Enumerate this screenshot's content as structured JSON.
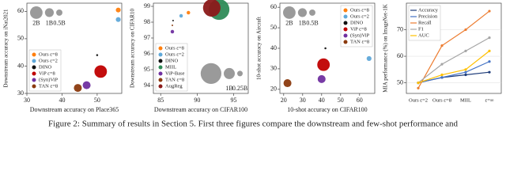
{
  "chart_data": [
    {
      "type": "bubble",
      "xlabel": "Downstream accuracy on Place365",
      "ylabel": "Downstream accuracy on iNat2021",
      "xlim": [
        30,
        57
      ],
      "ylim": [
        30,
        63
      ],
      "xticks": [
        30,
        40,
        50
      ],
      "yticks": [
        30,
        40,
        50,
        60
      ],
      "legend": "lower left",
      "size_legend": {
        "labels": [
          "2B",
          "1B",
          "0.5B"
        ],
        "sizes": [
          2,
          1,
          0.5
        ]
      },
      "size_legend_loc": "upper left",
      "series": [
        {
          "name": "Ours ε=8",
          "color": "#ff7f0e",
          "x": [
            56
          ],
          "values": [
            60.5
          ],
          "sizes": [
            0.3
          ]
        },
        {
          "name": "Ours ε=2",
          "color": "#5fa8d9",
          "x": [
            56
          ],
          "values": [
            57
          ],
          "sizes": [
            0.3
          ]
        },
        {
          "name": "DINO",
          "color": "#111111",
          "x": [
            50
          ],
          "values": [
            44
          ],
          "sizes": [
            0.05
          ]
        },
        {
          "name": "ViP ε=8",
          "color": "#c00000",
          "x": [
            51
          ],
          "values": [
            38
          ],
          "sizes": [
            2
          ]
        },
        {
          "name": "(Syn)ViP",
          "color": "#7030a0",
          "x": [
            47
          ],
          "values": [
            33
          ],
          "sizes": [
            0.8
          ]
        },
        {
          "name": "TAN ε=8",
          "color": "#8b3a0e",
          "x": [
            44.5
          ],
          "values": [
            32
          ],
          "sizes": [
            0.8
          ]
        }
      ]
    },
    {
      "type": "bubble",
      "xlabel": "Downstream accuracy on CIFAR100",
      "ylabel": "Downstream accuracy on CIFAR10",
      "xlim": [
        84,
        97
      ],
      "ylim": [
        93.5,
        99.2
      ],
      "xticks": [
        85,
        90,
        95
      ],
      "yticks": [
        94,
        95,
        96,
        97,
        98,
        99
      ],
      "legend": "lower left",
      "size_legend": {
        "labels": [
          null,
          "1B",
          "0.25B"
        ],
        "sizes": [
          3.5,
          1,
          0.25
        ]
      },
      "size_legend_loc": "lower right",
      "series": [
        {
          "name": "Ours ε=8",
          "color": "#ff7f0e",
          "x": [
            88.8
          ],
          "values": [
            98.6
          ],
          "sizes": [
            0.1
          ]
        },
        {
          "name": "Ours ε=2",
          "color": "#5fa8d9",
          "x": [
            87.8
          ],
          "values": [
            98.4
          ],
          "sizes": [
            0.1
          ]
        },
        {
          "name": "DINO",
          "color": "#111111",
          "x": [
            86.7
          ],
          "values": [
            98.1
          ],
          "sizes": [
            0.02
          ]
        },
        {
          "name": "MIIL",
          "color": "#2e8b57",
          "x": [
            93
          ],
          "values": [
            98.8
          ],
          "sizes": [
            3.5
          ]
        },
        {
          "name": "ViP-Base",
          "color": "#7030a0",
          "x": [
            86.6
          ],
          "values": [
            97.4
          ],
          "sizes": [
            0.1
          ]
        },
        {
          "name": "TAN ε=8",
          "color": "#8b3a0e",
          "x": [
            86.6
          ],
          "values": [
            97.8
          ],
          "sizes": [
            0.02
          ]
        },
        {
          "name": "AugReg",
          "color": "#8b1a1a",
          "x": [
            92
          ],
          "values": [
            98.9
          ],
          "sizes": [
            2.5
          ]
        }
      ]
    },
    {
      "type": "bubble",
      "xlabel": "10-shot accuracy on CIFAR100",
      "ylabel": "10-shot accuracy on Aircraft",
      "xlim": [
        18,
        68
      ],
      "ylim": [
        18,
        62
      ],
      "xticks": [
        20,
        30,
        40,
        50,
        60
      ],
      "yticks": [
        20,
        30,
        40,
        50,
        60
      ],
      "legend": "upper right",
      "size_legend": {
        "labels": [
          "2B",
          "1B",
          "0.5B"
        ],
        "sizes": [
          2,
          1,
          0.5
        ]
      },
      "size_legend_loc": "upper left",
      "series": [
        {
          "name": "Ours ε=8",
          "color": "#ff7f0e",
          "x": [
            65
          ],
          "values": [
            42
          ],
          "sizes": [
            0.3
          ]
        },
        {
          "name": "Ours ε=2",
          "color": "#5fa8d9",
          "x": [
            65
          ],
          "values": [
            35
          ],
          "sizes": [
            0.3
          ]
        },
        {
          "name": "DINO",
          "color": "#111111",
          "x": [
            42
          ],
          "values": [
            40
          ],
          "sizes": [
            0.05
          ]
        },
        {
          "name": "ViP ε=8",
          "color": "#c00000",
          "x": [
            41
          ],
          "values": [
            32
          ],
          "sizes": [
            2
          ]
        },
        {
          "name": "(Syn)ViP",
          "color": "#7030a0",
          "x": [
            40
          ],
          "values": [
            25
          ],
          "sizes": [
            0.8
          ]
        },
        {
          "name": "TAN ε=8",
          "color": "#8b3a0e",
          "x": [
            22
          ],
          "values": [
            23
          ],
          "sizes": [
            0.8
          ]
        }
      ]
    },
    {
      "type": "line",
      "ylabel": "MIA performance (%) on ImageNet-1K",
      "categories": [
        "Ours ε=2",
        "Ours ε=8",
        "MIIL",
        "ε=∞"
      ],
      "ylim": [
        46,
        80
      ],
      "yticks": [
        50,
        60,
        70
      ],
      "legend": "upper left",
      "series": [
        {
          "name": "Accuracy",
          "color": "#1f3d7a",
          "values": [
            50,
            52,
            53,
            54
          ]
        },
        {
          "name": "Precision",
          "color": "#4472c4",
          "values": [
            50,
            52,
            54,
            58
          ]
        },
        {
          "name": "Recall",
          "color": "#ed7d31",
          "values": [
            48,
            64,
            70,
            77
          ]
        },
        {
          "name": "F1",
          "color": "#a5a5a5",
          "values": [
            50,
            57,
            62,
            67
          ]
        },
        {
          "name": "AUC",
          "color": "#ffc000",
          "values": [
            50,
            53,
            55,
            62
          ]
        }
      ]
    }
  ],
  "caption": "Figure 2: Summary of results in Section 5. First three figures compare the downstream and few-shot performance and"
}
